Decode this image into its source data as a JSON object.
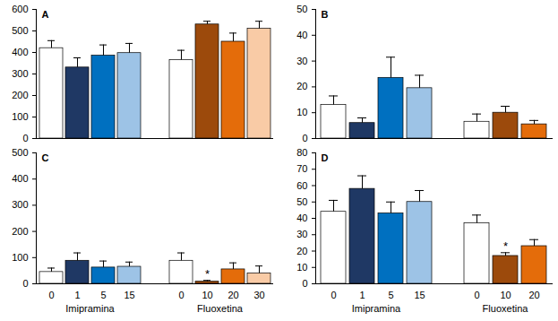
{
  "chart_data": [
    {
      "type": "bar",
      "title": "A",
      "tick_labels": "y",
      "ylim": [
        0,
        600
      ],
      "yticks": [
        0,
        100,
        200,
        300,
        400,
        500,
        600
      ],
      "series": [
        {
          "name": "Imipramina",
          "categories": [
            "0",
            "1",
            "5",
            "15"
          ],
          "values": [
            420,
            330,
            385,
            397
          ],
          "errors": [
            35,
            45,
            50,
            45
          ],
          "colors": [
            "#ffffff",
            "#1f3864",
            "#0070c0",
            "#9dc3e6"
          ]
        },
        {
          "name": "Fluoxetina",
          "categories": [
            "0",
            "10",
            "20",
            "30"
          ],
          "values": [
            365,
            530,
            450,
            510
          ],
          "errors": [
            45,
            15,
            40,
            35
          ],
          "colors": [
            "#ffffff",
            "#9c4a0c",
            "#e46c0a",
            "#f9cba6"
          ]
        }
      ]
    },
    {
      "type": "bar",
      "title": "B",
      "tick_labels": "y",
      "ylim": [
        0,
        50
      ],
      "yticks": [
        0,
        10,
        20,
        30,
        40,
        50
      ],
      "series": [
        {
          "name": "Imipramina",
          "categories": [
            "0",
            "1",
            "5",
            "15"
          ],
          "values": [
            13,
            6,
            23.5,
            19.5
          ],
          "errors": [
            3.5,
            2,
            8,
            5
          ],
          "colors": [
            "#ffffff",
            "#1f3864",
            "#0070c0",
            "#9dc3e6"
          ]
        },
        {
          "name": "Fluoxetina",
          "categories": [
            "0",
            "10",
            "20"
          ],
          "values": [
            6.5,
            10,
            5.5
          ],
          "errors": [
            3,
            2.5,
            1.5
          ],
          "colors": [
            "#ffffff",
            "#9c4a0c",
            "#e46c0a"
          ]
        }
      ]
    },
    {
      "type": "bar",
      "title": "C",
      "ylim": [
        0,
        500
      ],
      "yticks": [
        0,
        100,
        200,
        300,
        400,
        500
      ],
      "series": [
        {
          "name": "Imipramina",
          "categories": [
            "0",
            "1",
            "5",
            "15"
          ],
          "values": [
            45,
            88,
            62,
            65
          ],
          "errors": [
            15,
            30,
            25,
            18
          ],
          "colors": [
            "#ffffff",
            "#1f3864",
            "#0070c0",
            "#9dc3e6"
          ]
        },
        {
          "name": "Fluoxetina",
          "categories": [
            "0",
            "10",
            "20",
            "30"
          ],
          "values": [
            88,
            8,
            55,
            40
          ],
          "errors": [
            30,
            5,
            25,
            28
          ],
          "colors": [
            "#ffffff",
            "#9c4a0c",
            "#e46c0a",
            "#f9cba6"
          ]
        }
      ],
      "annotations": [
        {
          "series": "Fluoxetina",
          "index": 1,
          "text": "*"
        }
      ]
    },
    {
      "type": "bar",
      "title": "D",
      "ylim": [
        0,
        80
      ],
      "yticks": [
        0,
        10,
        20,
        30,
        40,
        50,
        60,
        70,
        80
      ],
      "series": [
        {
          "name": "Imipramina",
          "categories": [
            "0",
            "1",
            "5",
            "15"
          ],
          "values": [
            44,
            58,
            43,
            50
          ],
          "errors": [
            7,
            8,
            7,
            7
          ],
          "colors": [
            "#ffffff",
            "#1f3864",
            "#0070c0",
            "#9dc3e6"
          ]
        },
        {
          "name": "Fluoxetina",
          "categories": [
            "0",
            "10",
            "20"
          ],
          "values": [
            37,
            17,
            23
          ],
          "errors": [
            5,
            2,
            4
          ],
          "colors": [
            "#ffffff",
            "#9c4a0c",
            "#e46c0a"
          ]
        }
      ],
      "annotations": [
        {
          "series": "Fluoxetina",
          "index": 1,
          "text": "*"
        }
      ]
    }
  ]
}
